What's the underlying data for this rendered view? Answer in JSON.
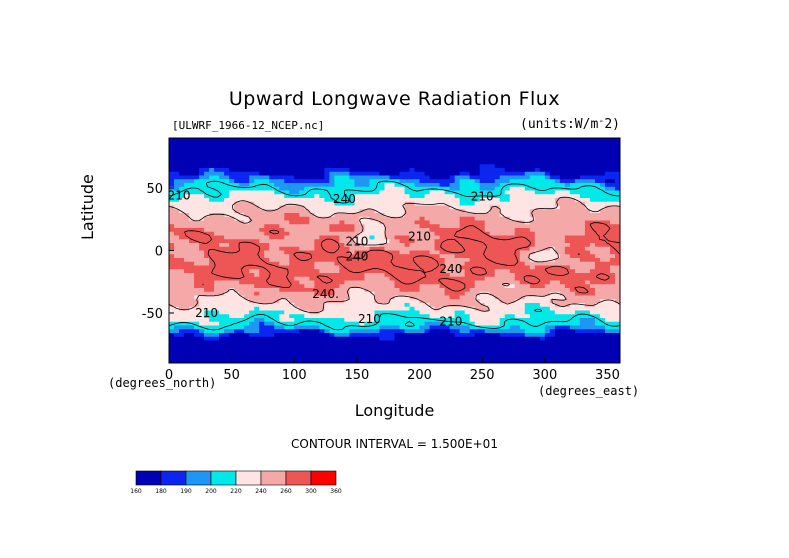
{
  "chart_data": {
    "type": "heatmap",
    "title": "Upward Longwave Radiation Flux",
    "file": "[ULWRF_1966-12_NCEP.nc]",
    "units": "(units:W/m^-2)",
    "xlabel": "Longitude",
    "ylabel": "Latitude",
    "x_units_left": "(degrees_north)",
    "x_units_right": "(degrees_east)",
    "xlim": [
      0,
      360
    ],
    "ylim": [
      -90,
      90
    ],
    "x_ticks": [
      0,
      50,
      100,
      150,
      200,
      250,
      300,
      350
    ],
    "y_ticks": [
      -50,
      0,
      50
    ],
    "contour_interval": "CONTOUR INTERVAL = 1.500E+01",
    "contour_labels": [
      {
        "text": "210",
        "lon": 150,
        "lat": 4
      },
      {
        "text": "240",
        "lon": 140,
        "lat": 38
      },
      {
        "text": "210",
        "lon": 200,
        "lat": 8
      },
      {
        "text": "240",
        "lon": 150,
        "lat": -8
      },
      {
        "text": "240.",
        "lon": 125,
        "lat": -38
      },
      {
        "text": "210",
        "lon": 30,
        "lat": -53
      },
      {
        "text": "210",
        "lon": 160,
        "lat": -58
      },
      {
        "text": "210",
        "lon": 225,
        "lat": -60
      },
      {
        "text": "240",
        "lon": 225,
        "lat": -18
      },
      {
        "text": "210",
        "lon": 250,
        "lat": 40
      },
      {
        "text": "210",
        "lon": 8,
        "lat": 41
      }
    ],
    "colorbar": {
      "levels": [
        160,
        180,
        190,
        200,
        220,
        240,
        260,
        300,
        360
      ],
      "colors": [
        "#0000b4",
        "#0c26f2",
        "#1e96f4",
        "#00e8e8",
        "#ffe4e4",
        "#f4a8a8",
        "#ee5656",
        "#ff0000"
      ]
    },
    "field_description": "zonal bands: cold high latitudes (north very cold), warm tropics/subtropics"
  }
}
